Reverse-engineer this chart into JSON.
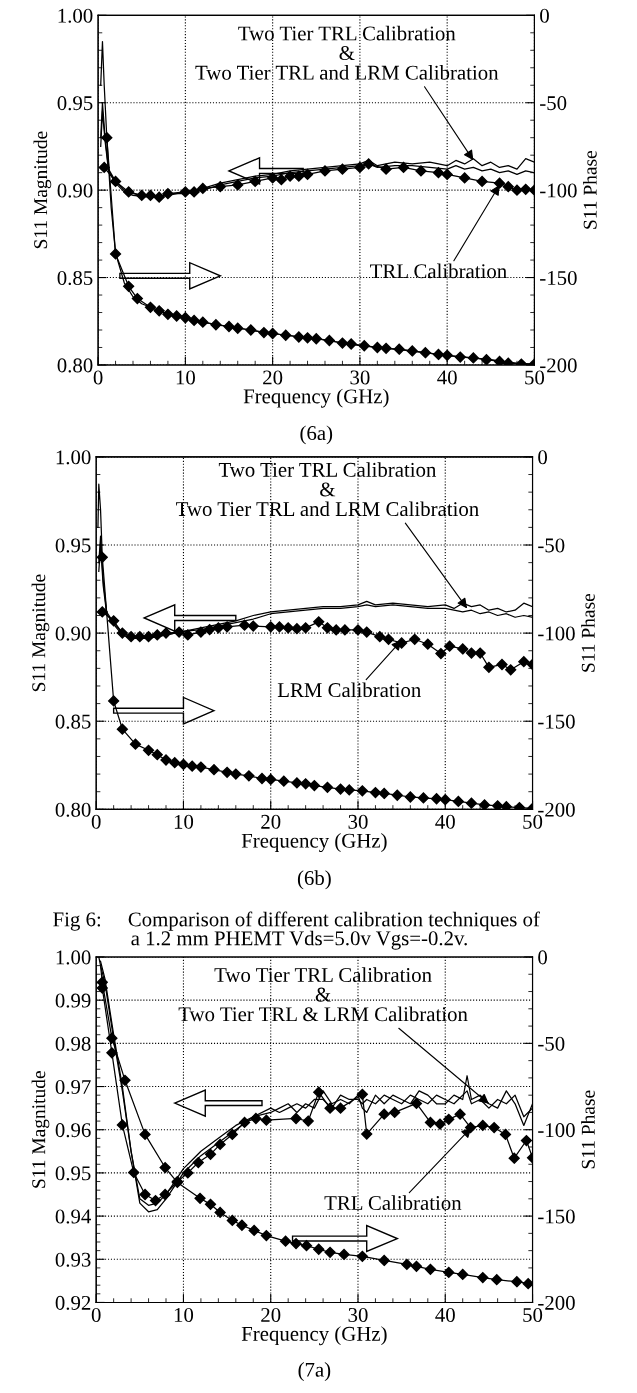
{
  "chart_data": [
    {
      "type": "line",
      "xlabel": "Frequency (GHz)",
      "ylabel": "S11 Magnitude",
      "y2label": "S11 Phase",
      "xlim": [
        0,
        50
      ],
      "xticks": [
        0,
        10,
        20,
        30,
        40,
        50
      ],
      "ylim": [
        0.8,
        1.0
      ],
      "yticks": [
        {
          "value": 0.8,
          "label": "0.80"
        },
        {
          "value": 0.85,
          "label": "0.85"
        },
        {
          "value": 0.9,
          "label": "0.90"
        },
        {
          "value": 0.95,
          "label": "0.95"
        },
        {
          "value": 1.0,
          "label": "1.00"
        }
      ],
      "y2lim": [
        -200,
        0
      ],
      "y2ticks": [
        -200,
        -150,
        -100,
        -50,
        0
      ],
      "grid": true,
      "legend": false,
      "series": [
        {
          "color": "#000000",
          "marker": "none",
          "x": [
            0.3,
            0.5,
            0.8,
            1.2,
            2,
            3,
            4,
            5,
            6,
            7,
            8,
            9,
            10,
            12,
            14,
            16,
            18,
            20,
            22,
            24,
            26,
            28,
            30,
            31,
            32,
            34,
            36,
            38,
            40,
            41,
            42,
            43,
            44,
            45,
            46,
            47,
            48,
            49,
            50
          ],
          "values": [
            0.93,
            0.95,
            0.93,
            0.912,
            0.905,
            0.9,
            0.898,
            0.897,
            0.8965,
            0.8965,
            0.898,
            0.898,
            0.899,
            0.901,
            0.904,
            0.906,
            0.908,
            0.909,
            0.911,
            0.912,
            0.913,
            0.914,
            0.915,
            0.917,
            0.914,
            0.916,
            0.915,
            0.916,
            0.914,
            0.917,
            0.915,
            0.918,
            0.914,
            0.916,
            0.913,
            0.914,
            0.912,
            0.918,
            0.916
          ]
        },
        {
          "color": "#000000",
          "marker": "none",
          "x": [
            0.3,
            0.5,
            0.8,
            1.2,
            2,
            3,
            4,
            5,
            6,
            7,
            8,
            9,
            10,
            12,
            14,
            16,
            18,
            20,
            22,
            24,
            26,
            28,
            30,
            31,
            32,
            34,
            36,
            38,
            40,
            41,
            42,
            43,
            44,
            45,
            46,
            47,
            48,
            49,
            50
          ],
          "values": [
            0.925,
            0.945,
            0.928,
            0.911,
            0.904,
            0.899,
            0.897,
            0.8965,
            0.896,
            0.896,
            0.897,
            0.898,
            0.898,
            0.9,
            0.903,
            0.905,
            0.907,
            0.908,
            0.91,
            0.911,
            0.912,
            0.913,
            0.914,
            0.915,
            0.913,
            0.914,
            0.914,
            0.913,
            0.912,
            0.914,
            0.912,
            0.913,
            0.911,
            0.912,
            0.91,
            0.911,
            0.909,
            0.911,
            0.91
          ]
        },
        {
          "color": "#000000",
          "marker": "diamond",
          "x": [
            0.7,
            2,
            3.5,
            5,
            6,
            7,
            8,
            10,
            11,
            12,
            14,
            16,
            18,
            20,
            21,
            22,
            23,
            24,
            26,
            28,
            30,
            31,
            33,
            35,
            37,
            39,
            40,
            42,
            44,
            46,
            47,
            48,
            49,
            50
          ],
          "values": [
            0.913,
            0.905,
            0.899,
            0.897,
            0.897,
            0.896,
            0.898,
            0.899,
            0.899,
            0.901,
            0.902,
            0.903,
            0.905,
            0.907,
            0.906,
            0.908,
            0.908,
            0.909,
            0.911,
            0.912,
            0.913,
            0.915,
            0.912,
            0.913,
            0.911,
            0.91,
            0.909,
            0.907,
            0.905,
            0.904,
            0.902,
            0.9,
            0.9005,
            0.9
          ]
        },
        {
          "color": "#000000",
          "marker": "none",
          "axis": "y2",
          "x": [
            0.3,
            0.5,
            0.7,
            1,
            1.5,
            2,
            3,
            4,
            5,
            6,
            8,
            10,
            12,
            15,
            20,
            25,
            30,
            35,
            40,
            45,
            48,
            50
          ],
          "values": [
            -40,
            -15,
            -40,
            -70,
            -110,
            -136,
            -153,
            -161,
            -165,
            -167,
            -171,
            -173,
            -175.5,
            -178,
            -182,
            -185,
            -189,
            -191.5,
            -194.5,
            -197,
            -199,
            -199.5
          ]
        },
        {
          "color": "#000000",
          "marker": "diamond",
          "axis": "y2",
          "x": [
            1,
            2,
            3.5,
            4.5,
            6,
            7,
            8,
            9,
            10,
            11,
            12,
            13.5,
            15,
            16,
            17.5,
            19,
            20,
            21.5,
            23,
            24,
            25,
            26.5,
            28,
            29,
            30.5,
            32,
            33,
            34.5,
            36,
            37.5,
            39,
            40,
            41.5,
            43,
            44.5,
            46,
            47,
            48.5,
            50
          ],
          "values": [
            -70,
            -136.5,
            -155,
            -162,
            -167,
            -169,
            -171,
            -172,
            -173,
            -174.5,
            -175.5,
            -177,
            -178,
            -179,
            -180,
            -181.5,
            -182,
            -183,
            -184,
            -184.5,
            -185,
            -186,
            -187.5,
            -188,
            -189,
            -190,
            -190.5,
            -191,
            -192,
            -193,
            -194,
            -194.5,
            -195.5,
            -196,
            -197,
            -198,
            -199,
            -199.5,
            -199.5
          ]
        }
      ],
      "annotations": [
        {
          "text": "Two Tier TRL Calibration\n&\nTwo Tier TRL and LRM Calibration",
          "x": 43,
          "y": 0.917
        },
        {
          "text": "TRL Calibration",
          "x": 46,
          "y": 0.903
        },
        "(6a)"
      ]
    },
    {
      "type": "line",
      "xlabel": "Frequency (GHz)",
      "ylabel": "S11 Magnitude",
      "y2label": "S11 Phase",
      "xlim": [
        0,
        50
      ],
      "xticks": [
        0,
        10,
        20,
        30,
        40,
        50
      ],
      "ylim": [
        0.8,
        1.0
      ],
      "yticks": [
        {
          "value": 0.8,
          "label": "0.80"
        },
        {
          "value": 0.85,
          "label": "0.85"
        },
        {
          "value": 0.9,
          "label": "0.90"
        },
        {
          "value": 0.95,
          "label": "0.95"
        },
        {
          "value": 1.0,
          "label": "1.00"
        }
      ],
      "y2lim": [
        -200,
        0
      ],
      "y2ticks": [
        -200,
        -150,
        -100,
        -50,
        0
      ],
      "grid": true,
      "legend": false,
      "series": [
        {
          "color": "#000000",
          "marker": "none",
          "x": [
            0.3,
            0.5,
            0.8,
            1.2,
            2,
            3,
            4,
            5,
            6,
            7,
            8,
            9,
            10,
            12,
            14,
            16,
            18,
            20,
            22,
            24,
            26,
            28,
            30,
            31,
            32,
            34,
            36,
            38,
            40,
            41,
            42,
            43,
            44,
            45,
            46,
            47,
            48,
            49,
            50
          ],
          "values": [
            0.94,
            0.955,
            0.93,
            0.912,
            0.906,
            0.9,
            0.898,
            0.898,
            0.898,
            0.898,
            0.899,
            0.9,
            0.901,
            0.903,
            0.905,
            0.907,
            0.91,
            0.912,
            0.913,
            0.914,
            0.915,
            0.915,
            0.916,
            0.918,
            0.916,
            0.917,
            0.916,
            0.915,
            0.916,
            0.914,
            0.917,
            0.915,
            0.916,
            0.913,
            0.914,
            0.912,
            0.913,
            0.917,
            0.915
          ]
        },
        {
          "color": "#000000",
          "marker": "none",
          "x": [
            0.3,
            0.5,
            0.8,
            1.2,
            2,
            3,
            4,
            5,
            6,
            7,
            8,
            9,
            10,
            12,
            14,
            16,
            18,
            20,
            22,
            24,
            26,
            28,
            30,
            31,
            32,
            34,
            36,
            38,
            40,
            41,
            42,
            43,
            44,
            45,
            46,
            47,
            48,
            49,
            50
          ],
          "values": [
            0.935,
            0.95,
            0.927,
            0.911,
            0.905,
            0.899,
            0.897,
            0.897,
            0.897,
            0.898,
            0.899,
            0.9,
            0.901,
            0.902,
            0.904,
            0.906,
            0.908,
            0.911,
            0.912,
            0.913,
            0.914,
            0.914,
            0.915,
            0.916,
            0.915,
            0.916,
            0.915,
            0.914,
            0.914,
            0.913,
            0.912,
            0.913,
            0.911,
            0.912,
            0.91,
            0.911,
            0.909,
            0.91,
            0.909
          ]
        },
        {
          "color": "#000000",
          "marker": "diamond",
          "x": [
            0.7,
            2,
            3,
            4,
            5,
            6,
            7,
            8,
            9.5,
            10.5,
            12,
            13,
            14,
            15,
            17,
            18,
            20,
            21,
            22,
            23,
            24,
            25.5,
            26.5,
            27.5,
            28.5,
            30,
            31,
            32.5,
            33.5,
            35,
            36.5,
            38,
            39.5,
            40.5,
            42,
            43,
            44,
            45,
            46.5,
            47.5,
            49,
            50
          ],
          "values": [
            0.912,
            0.907,
            0.9,
            0.898,
            0.898,
            0.898,
            0.899,
            0.9,
            0.9006,
            0.899,
            0.9006,
            0.902,
            0.903,
            0.9036,
            0.9045,
            0.904,
            0.9036,
            0.9035,
            0.903,
            0.9025,
            0.903,
            0.9064,
            0.903,
            0.9018,
            0.9018,
            0.9018,
            0.9006,
            0.898,
            0.8965,
            0.8944,
            0.8965,
            0.8937,
            0.8884,
            0.8926,
            0.891,
            0.8887,
            0.8887,
            0.8806,
            0.8822,
            0.8792,
            0.8838,
            0.8822
          ]
        },
        {
          "color": "#000000",
          "marker": "none",
          "axis": "y2",
          "x": [
            0.2,
            0.3,
            0.5,
            0.7
          ],
          "values": [
            -40,
            -15.5,
            -30,
            -57
          ]
        },
        {
          "color": "#000000",
          "marker": "diamond",
          "axis": "y2",
          "x": [
            0.7,
            2,
            3,
            4.5,
            6,
            7,
            8,
            9,
            10,
            11,
            12,
            13.5,
            15,
            16,
            17.5,
            19,
            20,
            21.5,
            23,
            24,
            25,
            26.5,
            28,
            29,
            30.5,
            32,
            33,
            34.5,
            36,
            37.5,
            39,
            40,
            41.5,
            43,
            44.5,
            46,
            47,
            48.5,
            50
          ],
          "values": [
            -57,
            -138.5,
            -154.5,
            -163,
            -166.5,
            -169,
            -172,
            -173.5,
            -174.5,
            -175.5,
            -176,
            -177.5,
            -179,
            -180,
            -181,
            -182.5,
            -183,
            -184,
            -185,
            -185.5,
            -186.5,
            -187.5,
            -188.5,
            -189,
            -189.5,
            -190.5,
            -191,
            -192,
            -193,
            -193.5,
            -194,
            -194.5,
            -195.5,
            -196.5,
            -197.5,
            -198,
            -198.5,
            -199,
            -199.5
          ]
        }
      ],
      "annotations": [
        {
          "text": "Two Tier TRL Calibration\n&\nTwo Tier TRL and LRM Calibration",
          "x": 42.5,
          "y": 0.914
        },
        {
          "text": "LRM Calibration",
          "x": 35,
          "y": 0.896
        },
        "(6b)",
        "Fig 6:     Comparison of different calibration techniques of\n               a 1.2 mm PHEMT Vds=5.0v Vgs=-0.2v."
      ]
    },
    {
      "type": "line",
      "xlabel": "Frequency (GHz)",
      "ylabel": "S11 Magnitude",
      "y2label": "S11 Phase",
      "xlim": [
        0,
        50
      ],
      "xticks": [
        0,
        10,
        20,
        30,
        40,
        50
      ],
      "ylim": [
        0.92,
        1.0
      ],
      "yticks": [
        {
          "value": 0.92,
          "label": "0.92"
        },
        {
          "value": 0.93,
          "label": "0.93"
        },
        {
          "value": 0.94,
          "label": "0.94"
        },
        {
          "value": 0.95,
          "label": "0.95"
        },
        {
          "value": 0.96,
          "label": "0.96"
        },
        {
          "value": 0.97,
          "label": "0.97"
        },
        {
          "value": 0.98,
          "label": "0.98"
        },
        {
          "value": 0.99,
          "label": "0.99"
        },
        {
          "value": 1.0,
          "label": "1.00"
        }
      ],
      "y2lim": [
        -200,
        0
      ],
      "y2ticks": [
        -200,
        -150,
        -100,
        -50,
        0
      ],
      "grid": true,
      "legend": false,
      "series": [
        {
          "color": "#000000",
          "marker": "none",
          "x": [
            0.5,
            1,
            2,
            3,
            4,
            5,
            6,
            7,
            8,
            9,
            10,
            11,
            12,
            14,
            16,
            18,
            20,
            21,
            22,
            23,
            24,
            25,
            26,
            27,
            28,
            29,
            30,
            30.5,
            31,
            32,
            33,
            34,
            35,
            36,
            37,
            38,
            39,
            40,
            41,
            42,
            42.5,
            43,
            44,
            45,
            46,
            47,
            48,
            49,
            50
          ],
          "values": [
            0.999,
            0.995,
            0.982,
            0.97,
            0.955,
            0.943,
            0.941,
            0.9415,
            0.944,
            0.947,
            0.95,
            0.952,
            0.954,
            0.957,
            0.96,
            0.963,
            0.964,
            0.965,
            0.966,
            0.964,
            0.966,
            0.965,
            0.969,
            0.966,
            0.967,
            0.966,
            0.968,
            0.965,
            0.964,
            0.968,
            0.966,
            0.968,
            0.967,
            0.966,
            0.969,
            0.968,
            0.966,
            0.966,
            0.968,
            0.967,
            0.9725,
            0.967,
            0.968,
            0.966,
            0.965,
            0.969,
            0.966,
            0.961,
            0.966
          ]
        },
        {
          "color": "#000000",
          "marker": "none",
          "x": [
            0.5,
            1,
            2,
            3,
            4,
            5,
            6,
            7,
            8,
            9,
            10,
            11,
            12,
            14,
            16,
            18,
            20,
            21,
            22,
            23,
            24,
            25,
            26,
            27,
            28,
            29,
            30,
            30.5,
            31,
            32,
            33,
            34,
            35,
            36,
            37,
            38,
            39,
            40,
            41,
            42,
            42.5,
            43,
            44,
            45,
            46,
            47,
            48,
            49,
            50
          ],
          "values": [
            0.998,
            0.994,
            0.981,
            0.969,
            0.955,
            0.944,
            0.9425,
            0.943,
            0.945,
            0.948,
            0.951,
            0.953,
            0.955,
            0.958,
            0.961,
            0.963,
            0.965,
            0.964,
            0.965,
            0.966,
            0.965,
            0.967,
            0.967,
            0.965,
            0.968,
            0.967,
            0.967,
            0.966,
            0.967,
            0.966,
            0.968,
            0.967,
            0.966,
            0.968,
            0.967,
            0.966,
            0.968,
            0.967,
            0.966,
            0.968,
            0.969,
            0.966,
            0.967,
            0.965,
            0.967,
            0.966,
            0.968,
            0.963,
            0.965
          ]
        },
        {
          "color": "#000000",
          "marker": "diamond",
          "x": [
            0.7,
            1.8,
            3,
            4.3,
            5.6,
            6.8,
            7.9,
            9.3,
            10.5,
            11.7,
            13.1,
            14.2,
            15.6,
            17,
            18.3,
            19.5,
            22.9,
            24.3,
            25.5,
            26.8,
            28,
            30.5,
            31,
            33,
            34.2,
            36.7,
            38.3,
            39.4,
            40.4,
            41.7,
            42.9,
            44.3,
            45.6,
            46.9,
            47.9,
            49.3,
            50
          ],
          "values": [
            0.9928,
            0.9778,
            0.9611,
            0.9501,
            0.945,
            0.9436,
            0.945,
            0.948,
            0.95,
            0.9524,
            0.9543,
            0.9566,
            0.9589,
            0.9617,
            0.9626,
            0.9622,
            0.9626,
            0.962,
            0.9687,
            0.965,
            0.965,
            0.9682,
            0.959,
            0.9636,
            0.964,
            0.9661,
            0.9617,
            0.9613,
            0.9624,
            0.9636,
            0.9605,
            0.961,
            0.9605,
            0.9589,
            0.9534,
            0.9575,
            0.9535
          ]
        },
        {
          "color": "#000000",
          "marker": "none",
          "axis": "y2",
          "x": [
            0.3,
            0.5,
            0.7
          ],
          "values": [
            0,
            -5,
            -14.6
          ]
        },
        {
          "color": "#000000",
          "marker": "diamond",
          "axis": "y2",
          "x": [
            0.7,
            1.8,
            3.3,
            5.6,
            7.9,
            9.3,
            11.9,
            13.1,
            14.2,
            15.6,
            16.7,
            18.1,
            19.5,
            21.7,
            22.9,
            24.1,
            25.5,
            26.8,
            28.4,
            30.5,
            33,
            35.6,
            36.7,
            38.3,
            40.4,
            42,
            44.3,
            45.9,
            48.2,
            49.5
          ],
          "values": [
            -14.6,
            -47,
            -71.4,
            -102.7,
            -121.9,
            -130.5,
            -139.7,
            -143.2,
            -147.9,
            -152.5,
            -155.3,
            -158.3,
            -161.3,
            -164.5,
            -165.9,
            -167.1,
            -169.2,
            -171,
            -172.2,
            -173.3,
            -175.7,
            -178,
            -179.1,
            -180.8,
            -182.6,
            -183.8,
            -185.6,
            -186.8,
            -188,
            -189.1
          ]
        }
      ],
      "annotations": [
        {
          "text": "Two Tier TRL Calibration\n&\nTwo Tier TRL & LRM Calibration",
          "x": 45,
          "y": 0.966
        },
        {
          "text": "TRL Calibration",
          "x": 43,
          "y": 0.9605
        },
        "(7a)"
      ]
    }
  ]
}
